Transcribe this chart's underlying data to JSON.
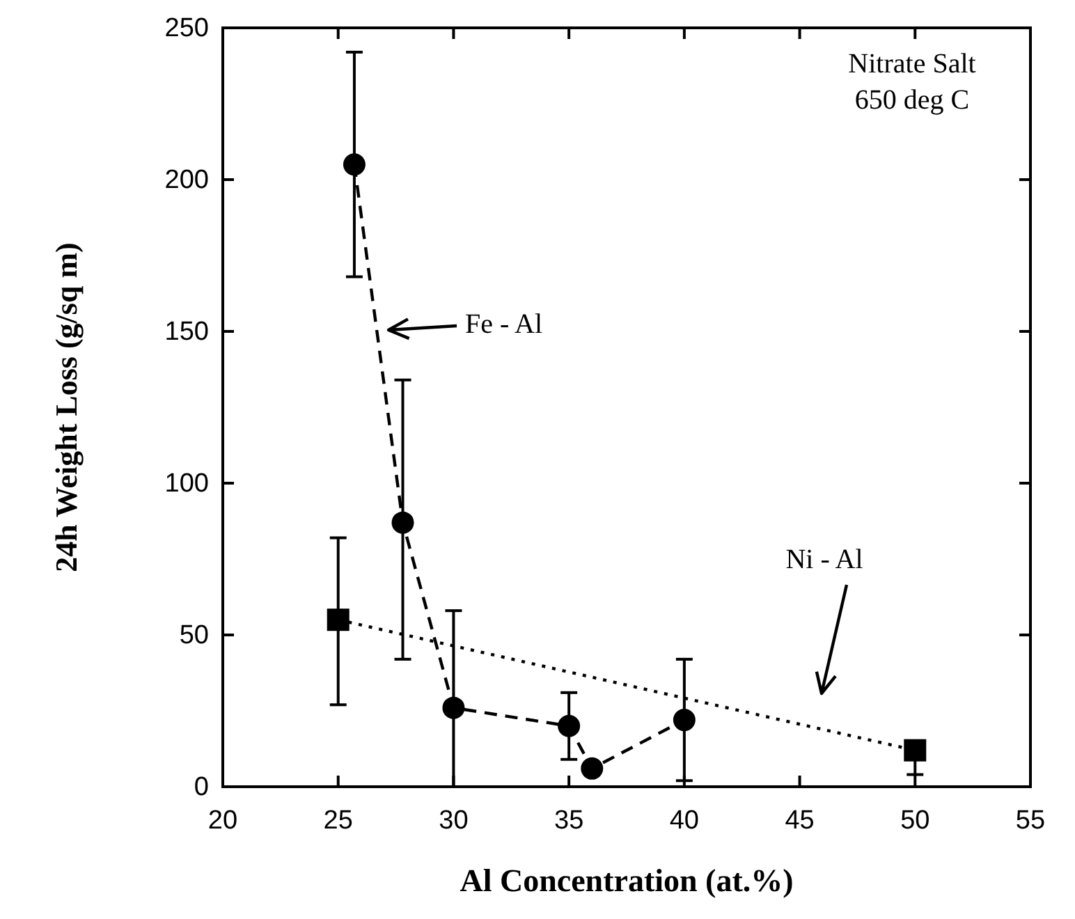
{
  "chart_data": {
    "type": "line",
    "xlabel": "Al Concentration (at.%)",
    "ylabel": "24h Weight Loss (g/sq m)",
    "xlim": [
      20,
      55
    ],
    "xticks": [
      20,
      25,
      30,
      35,
      40,
      45,
      50,
      55
    ],
    "ylim": [
      0,
      250
    ],
    "yticks": [
      0,
      50,
      100,
      150,
      200,
      250
    ],
    "grid": false,
    "series": [
      {
        "color": "#000000",
        "marker": "circle",
        "line_style": "dashed",
        "x": [
          25.7,
          27.8,
          30,
          35,
          36,
          40
        ],
        "values": [
          205,
          87,
          26,
          20,
          6,
          22
        ],
        "errors": [
          [
            168,
            242
          ],
          [
            42,
            134
          ],
          [
            0,
            58
          ],
          [
            9,
            31
          ],
          null,
          [
            2,
            42
          ]
        ]
      },
      {
        "color": "#000000",
        "marker": "square",
        "line_style": "dotted",
        "x": [
          25,
          50
        ],
        "values": [
          55,
          12
        ],
        "errors": [
          [
            27,
            82
          ],
          [
            4,
            12
          ]
        ]
      }
    ],
    "annotations": [
      "Nitrate Salt",
      "650 deg C",
      "Fe - Al",
      "Ni - Al"
    ]
  }
}
